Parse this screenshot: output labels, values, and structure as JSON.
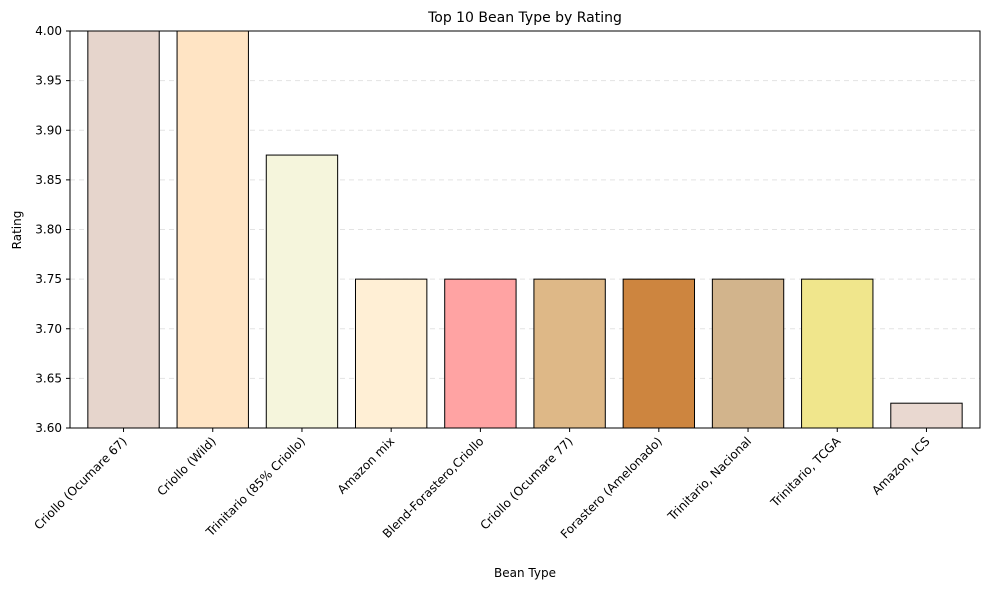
{
  "chart_data": {
    "type": "bar",
    "title": "Top 10 Bean Type by Rating",
    "xlabel": "Bean Type",
    "ylabel": "Rating",
    "ylim": [
      3.6,
      4.0
    ],
    "yticks": [
      3.6,
      3.65,
      3.7,
      3.75,
      3.8,
      3.85,
      3.9,
      3.95,
      4.0
    ],
    "ytick_labels": [
      "3.60",
      "3.65",
      "3.70",
      "3.75",
      "3.80",
      "3.85",
      "3.90",
      "3.95",
      "4.00"
    ],
    "grid": "y-dashed",
    "categories": [
      "Criollo (Ocumare 67)",
      "Criollo (Wild)",
      "Trinitario (85% Criollo)",
      "Amazon mix",
      "Blend-Forastero,Criollo",
      "Criollo (Ocumare 77)",
      "Forastero (Amelonado)",
      "Trinitario, Nacional",
      "Trinitario, TCGA",
      "Amazon, ICS"
    ],
    "values": [
      4.0,
      4.0,
      3.875,
      3.75,
      3.75,
      3.75,
      3.75,
      3.75,
      3.75,
      3.625
    ],
    "colors": [
      "#e6d5cc",
      "#ffe4c4",
      "#f5f5dc",
      "#ffefd5",
      "#ffa3a3",
      "#deb887",
      "#cd853f",
      "#d2b48c",
      "#f0e68c",
      "#e9d8d0"
    ]
  }
}
